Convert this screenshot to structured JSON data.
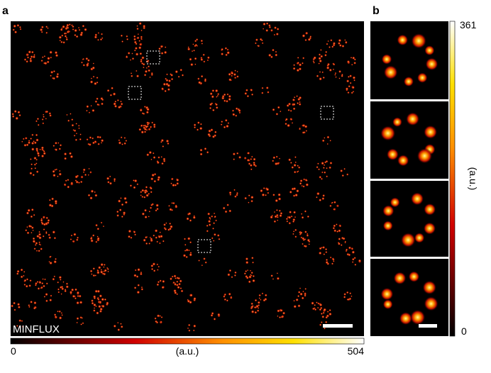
{
  "panel_a": {
    "label": "a",
    "method": "MINFLUX",
    "colorbar": {
      "min": 0,
      "unit": "(a.u.)",
      "max": 504
    }
  },
  "panel_b": {
    "label": "b",
    "colorbar": {
      "min": 0,
      "unit": "(a.u.)",
      "max": 361
    }
  }
}
